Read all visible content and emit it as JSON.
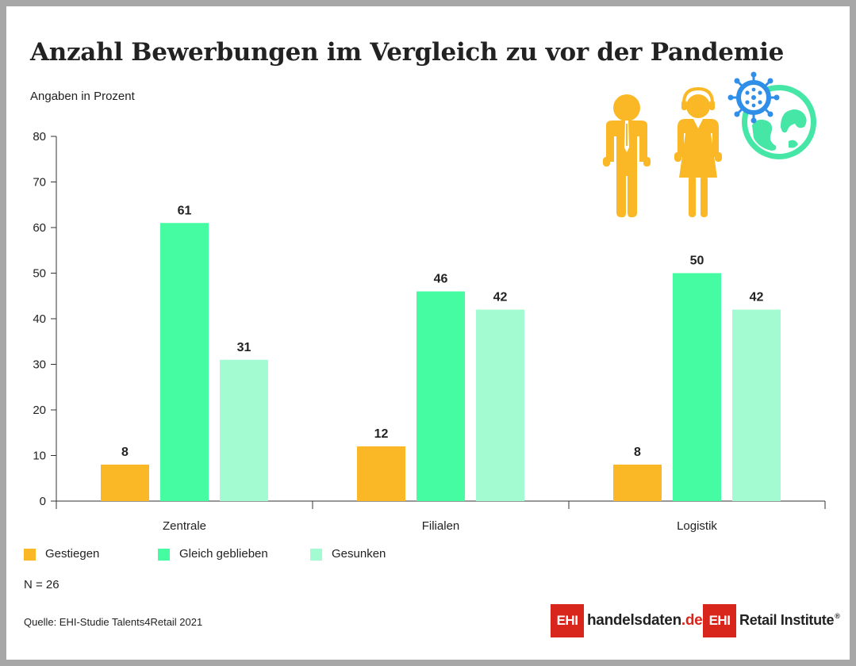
{
  "title": "Anzahl Bewerbungen im Vergleich zu vor der Pandemie",
  "subtitle": "Angaben in Prozent",
  "note": "N = 26",
  "source": "Quelle: EHI-Studie Talents4Retail 2021",
  "logos": {
    "handelsdaten_box": "EHI",
    "handelsdaten_text": "handelsdaten",
    "handelsdaten_suffix": ".de",
    "ehi_box": "EHI",
    "ehi_text": "Retail Institute",
    "registered_mark": "®"
  },
  "colors": {
    "gestiegen": "#fbb826",
    "gleich_geblieben": "#45fca2",
    "gesunken": "#a3fbd2",
    "logo_red": "#d9261c",
    "icon_yellow": "#fbb826",
    "icon_blue": "#2f8ee8",
    "icon_green": "#45e6a6"
  },
  "icons": [
    "businessman-icon",
    "businesswoman-headset-icon",
    "virus-icon",
    "globe-icon"
  ],
  "chart_data": {
    "type": "bar",
    "categories": [
      "Zentrale",
      "Filialen",
      "Logistik"
    ],
    "series": [
      {
        "name": "Gestiegen",
        "values": [
          8,
          12,
          8
        ],
        "color": "#fbb826"
      },
      {
        "name": "Gleich geblieben",
        "values": [
          61,
          46,
          50
        ],
        "color": "#45fca2"
      },
      {
        "name": "Gesunken",
        "values": [
          31,
          42,
          42
        ],
        "color": "#a3fbd2"
      }
    ],
    "title": "Anzahl Bewerbungen im Vergleich zu vor der Pandemie",
    "xlabel": "",
    "ylabel": "Angaben in Prozent",
    "ylim": [
      0,
      80
    ],
    "yticks": [
      0,
      10,
      20,
      30,
      40,
      50,
      60,
      70,
      80
    ],
    "data_labels": true,
    "grid": false,
    "legend": "bottom"
  }
}
